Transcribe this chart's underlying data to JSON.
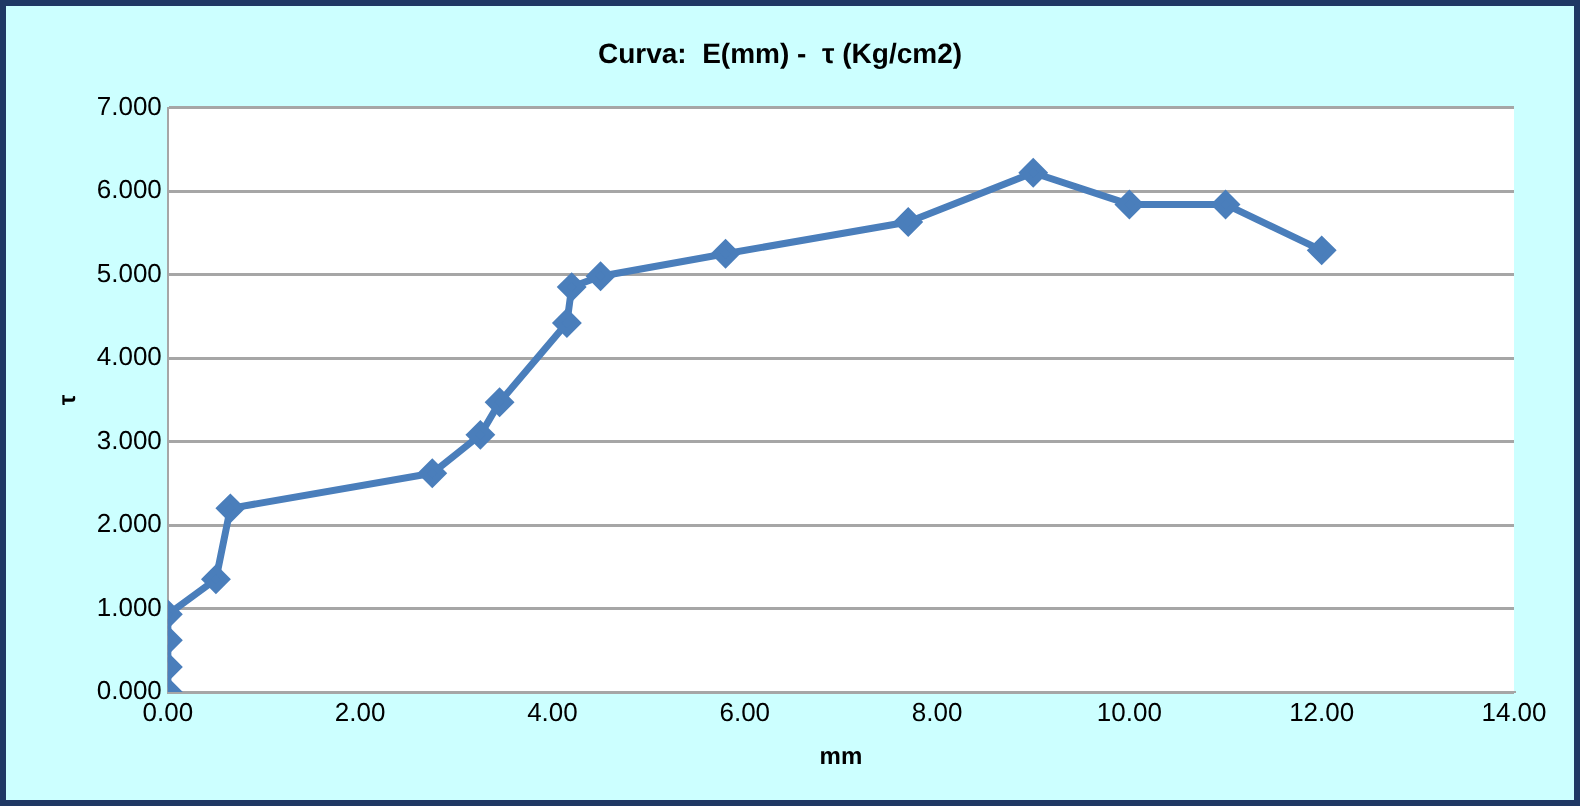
{
  "chart_data": {
    "type": "line",
    "title": "Curva:  E(mm) -  τ (Kg/cm2)",
    "xlabel": "mm",
    "ylabel": "τ",
    "series": [
      {
        "color": "#4a7ebb",
        "x": [
          0,
          0,
          0,
          0,
          0.5,
          0.65,
          2.75,
          3.25,
          3.45,
          4.15,
          4.2,
          4.5,
          5.8,
          7.7,
          9.0,
          10.0,
          11.0,
          12.0
        ],
        "values": [
          0,
          0.3,
          0.62,
          0.93,
          1.35,
          2.2,
          2.62,
          3.08,
          3.47,
          4.42,
          4.85,
          4.98,
          5.25,
          5.63,
          6.22,
          5.84,
          5.84,
          5.29
        ]
      }
    ],
    "xlim": [
      0,
      14
    ],
    "xticks": [
      {
        "value": 0,
        "label": "0.00"
      },
      {
        "value": 2,
        "label": "2.00"
      },
      {
        "value": 4,
        "label": "4.00"
      },
      {
        "value": 6,
        "label": "6.00"
      },
      {
        "value": 8,
        "label": "8.00"
      },
      {
        "value": 10,
        "label": "10.00"
      },
      {
        "value": 12,
        "label": "12.00"
      },
      {
        "value": 14,
        "label": "14.00"
      }
    ],
    "ylim": [
      0,
      7
    ],
    "yticks": [
      {
        "value": 0,
        "label": "0.000"
      },
      {
        "value": 1,
        "label": "1.000"
      },
      {
        "value": 2,
        "label": "2.000"
      },
      {
        "value": 3,
        "label": "3.000"
      },
      {
        "value": 4,
        "label": "4.000"
      },
      {
        "value": 5,
        "label": "5.000"
      },
      {
        "value": 6,
        "label": "6.000"
      },
      {
        "value": 7,
        "label": "7.000"
      }
    ],
    "grid": "y",
    "legend": false,
    "marker": "diamond",
    "line_style": "solid"
  }
}
